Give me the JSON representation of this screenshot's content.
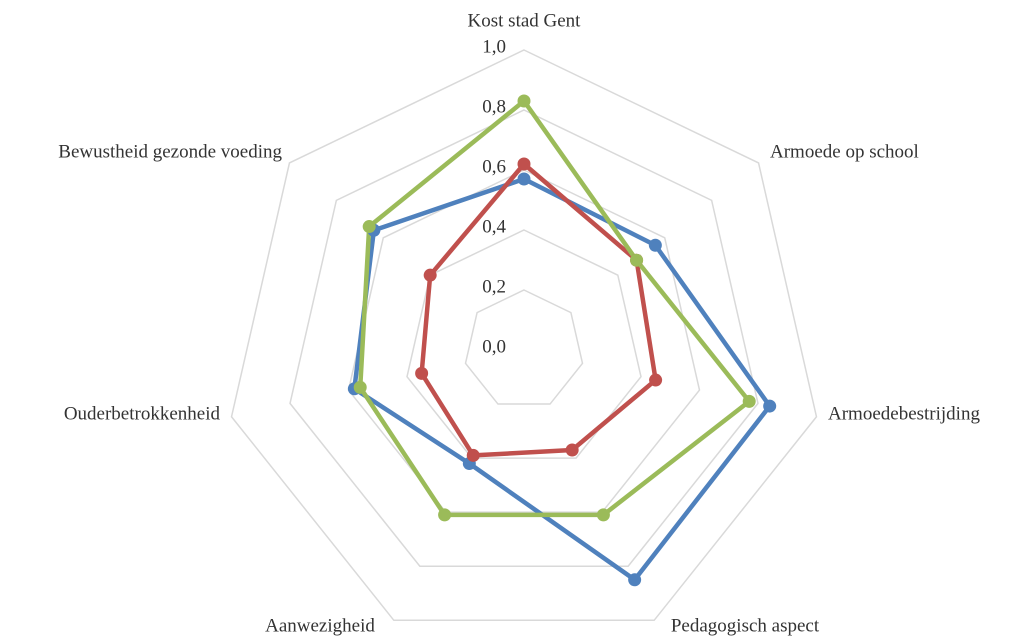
{
  "chart_data": {
    "type": "radar",
    "categories": [
      "Kost stad Gent",
      "Armoede op school",
      "Armoedebestrijding",
      "Pedagogisch aspect",
      "Aanwezigheid",
      "Ouderbetrokkenheid",
      "Bewustheid gezonde voeding"
    ],
    "series": [
      {
        "color": "#4f81bd",
        "values": [
          0.57,
          0.56,
          0.84,
          0.85,
          0.42,
          0.58,
          0.64
        ]
      },
      {
        "color": "#c0504d",
        "values": [
          0.62,
          0.48,
          0.45,
          0.37,
          0.39,
          0.35,
          0.4
        ]
      },
      {
        "color": "#9bbb59",
        "values": [
          0.83,
          0.48,
          0.77,
          0.61,
          0.61,
          0.56,
          0.66
        ]
      }
    ],
    "ylim": [
      0,
      1
    ],
    "yticks": [
      {
        "value": 0,
        "label": "0,0"
      },
      {
        "value": 0.2,
        "label": "0,2"
      },
      {
        "value": 0.4,
        "label": "0,4"
      },
      {
        "value": 0.6,
        "label": "0,6"
      },
      {
        "value": 0.8,
        "label": "0,8"
      },
      {
        "value": 1,
        "label": "1,0"
      }
    ],
    "grid": true
  }
}
